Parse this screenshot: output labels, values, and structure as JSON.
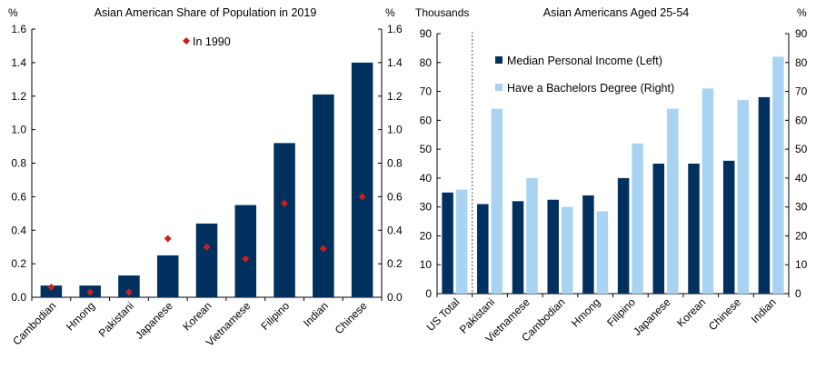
{
  "colors": {
    "navy": "#00305E",
    "light_blue": "#A8D3F2",
    "diamond": "#C8201E",
    "axis": "#000000"
  },
  "chart_data": [
    {
      "type": "bar",
      "title": "Asian American Share of Population in 2019",
      "left_unit": "%",
      "right_unit": "%",
      "ylim": [
        0,
        1.6
      ],
      "yticks": [
        "0.0",
        "0.2",
        "0.4",
        "0.6",
        "0.8",
        "1.0",
        "1.2",
        "1.4",
        "1.6"
      ],
      "categories": [
        "Cambodian",
        "Hmong",
        "Pakistani",
        "Japanese",
        "Korean",
        "Vietnamese",
        "Filipino",
        "Indian",
        "Chinese"
      ],
      "series": [
        {
          "name": "2019",
          "kind": "bar",
          "values": [
            0.07,
            0.07,
            0.13,
            0.25,
            0.44,
            0.55,
            0.92,
            1.21,
            1.4
          ]
        },
        {
          "name": "In 1990",
          "kind": "marker",
          "values": [
            0.06,
            0.03,
            0.03,
            0.35,
            0.3,
            0.23,
            0.56,
            0.29,
            0.6
          ]
        }
      ],
      "legend": [
        {
          "label": "In 1990"
        }
      ]
    },
    {
      "type": "bar",
      "title": "Asian Americans Aged 25-54",
      "left_unit": "Thousands",
      "right_unit": "%",
      "ylim": [
        0,
        90
      ],
      "yticks": [
        "0",
        "10",
        "20",
        "30",
        "40",
        "50",
        "60",
        "70",
        "80",
        "90"
      ],
      "categories": [
        "US Total",
        "Pakistani",
        "Vietnamese",
        "Cambodian",
        "Hmong",
        "Filipino",
        "Japanese",
        "Korean",
        "Chinese",
        "Indian"
      ],
      "series": [
        {
          "name": "Median Personal Income (Left)",
          "axis": "left",
          "values": [
            35,
            31,
            32,
            32.5,
            34,
            40,
            45,
            45,
            46,
            68
          ]
        },
        {
          "name": "Have a Bachelors Degree (Right)",
          "axis": "right",
          "values": [
            36,
            64,
            40,
            30,
            28.5,
            52,
            64,
            71,
            67,
            82
          ]
        }
      ],
      "legend": [
        {
          "label": "Median Personal Income (Left)"
        },
        {
          "label": "Have a Bachelors Degree (Right)"
        }
      ]
    }
  ]
}
